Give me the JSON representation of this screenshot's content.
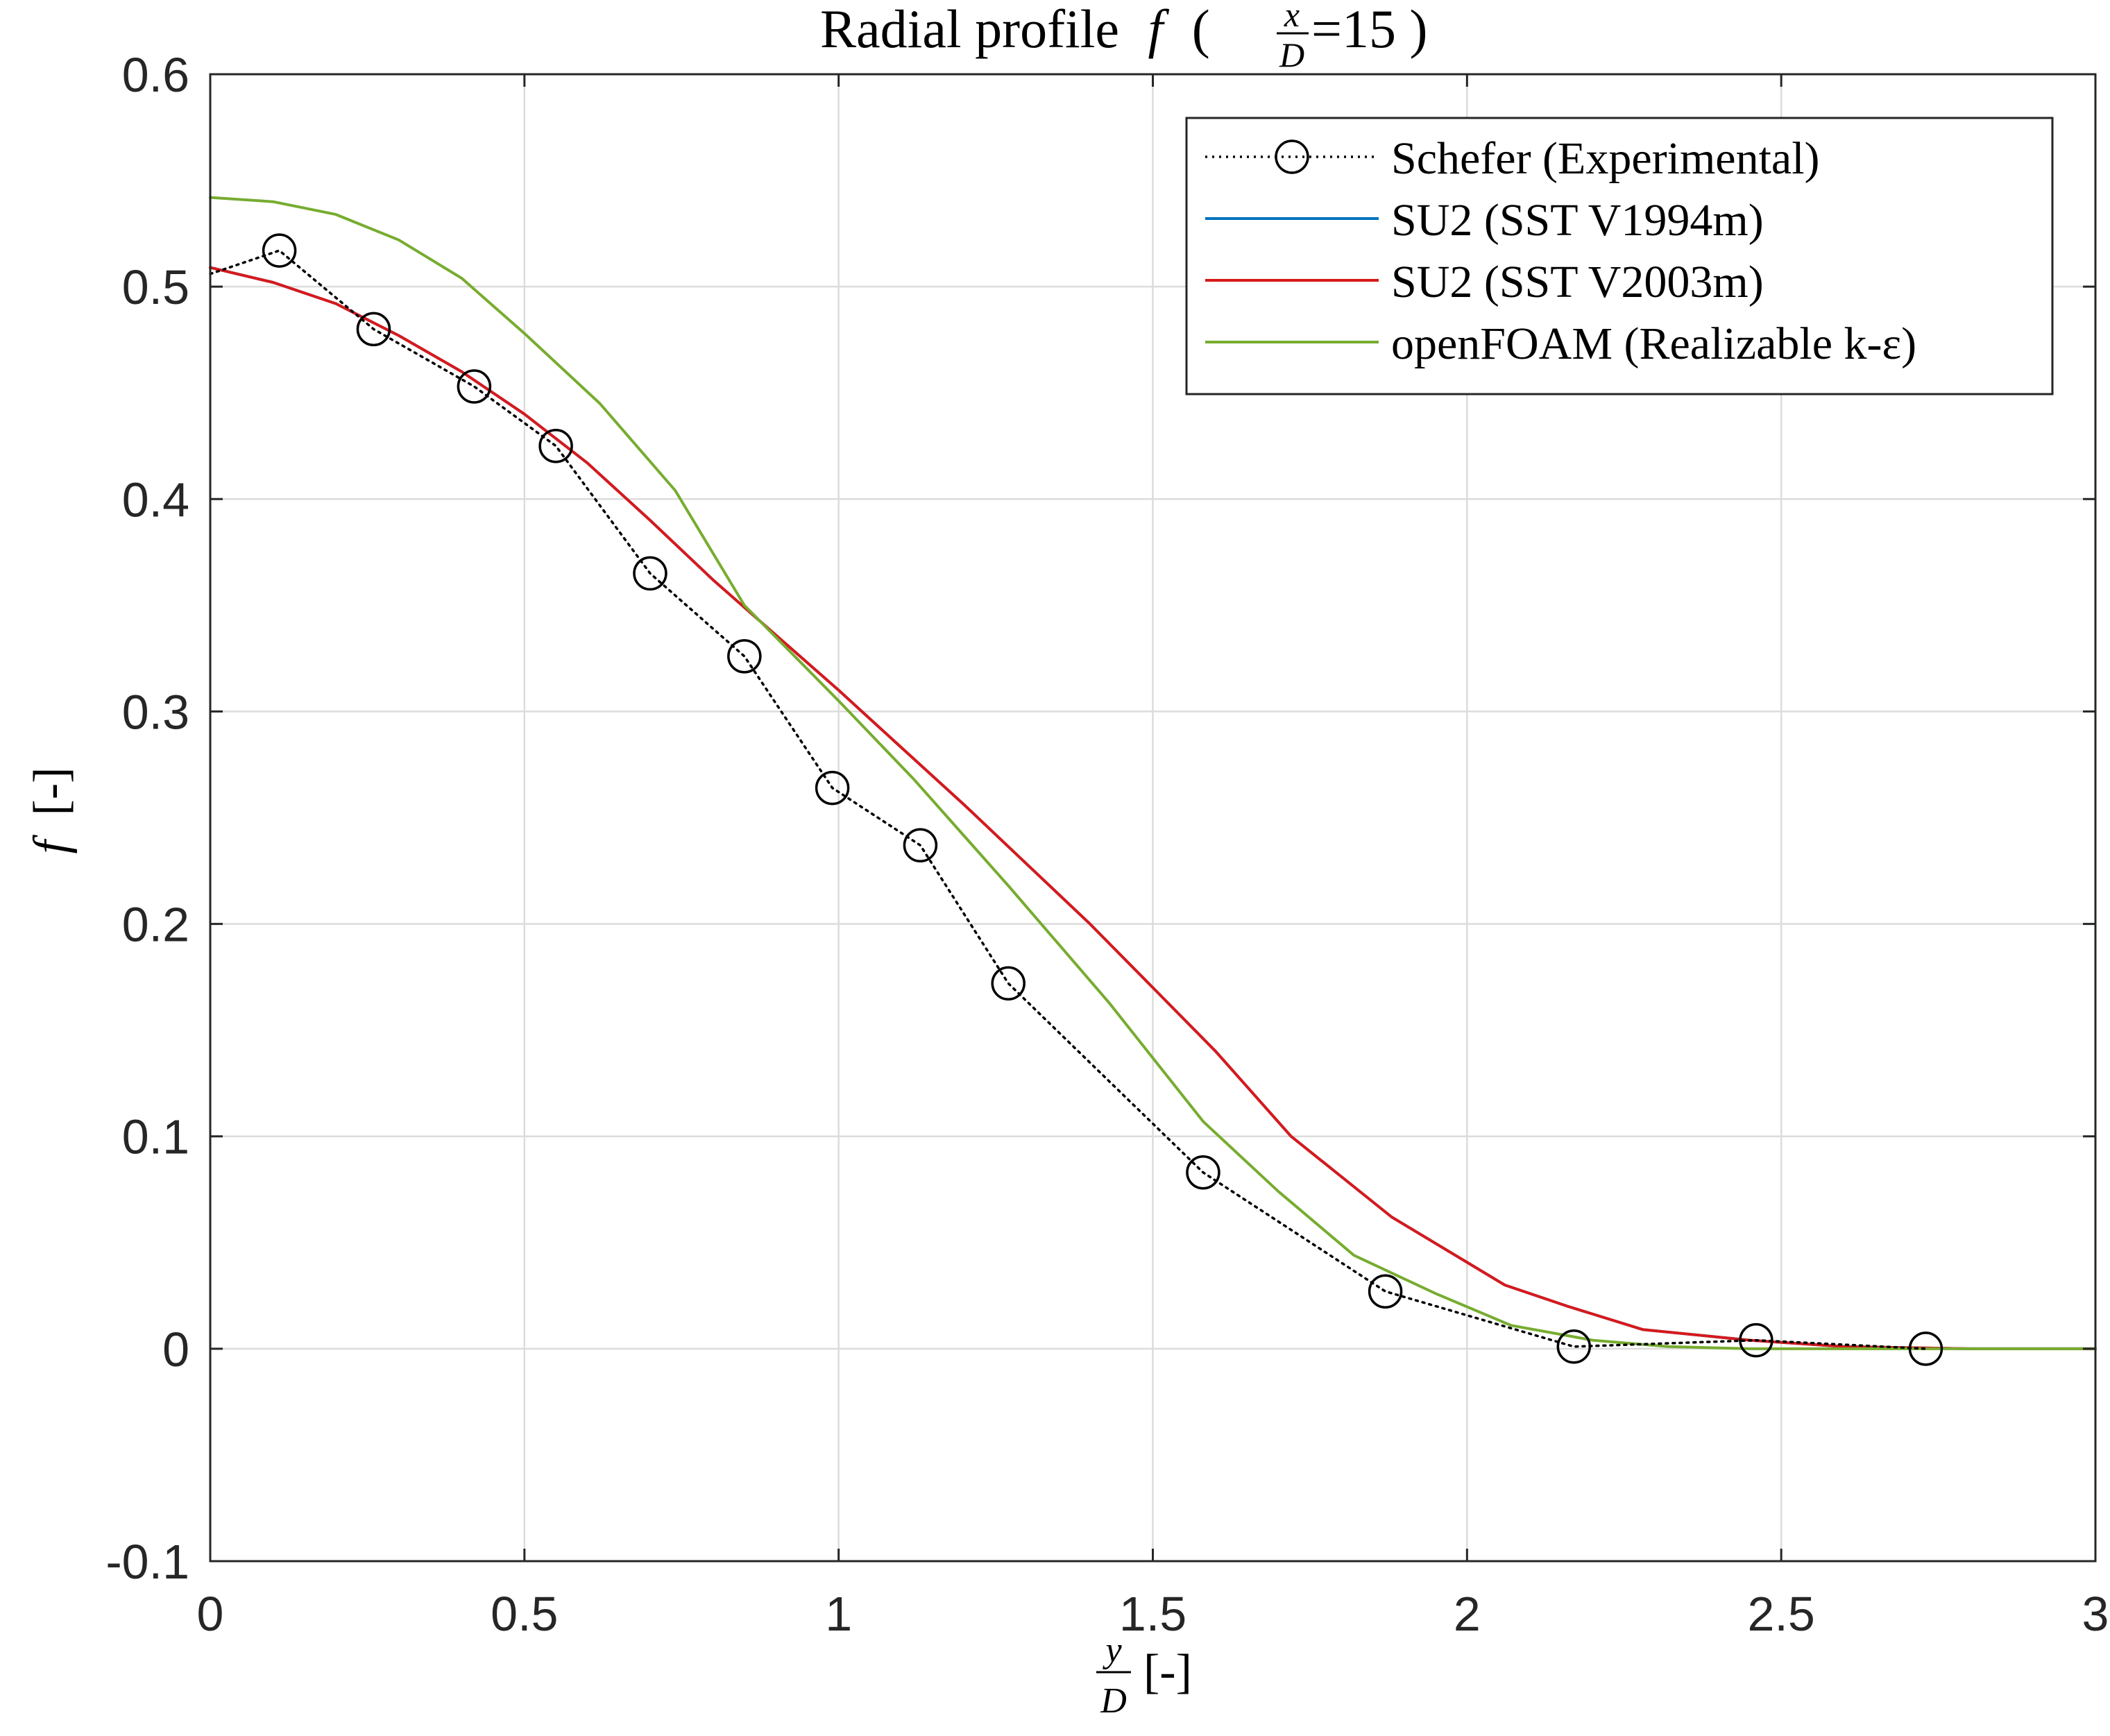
{
  "chart_data": {
    "type": "line",
    "title": {
      "text": "Radial profile",
      "symbol": "f",
      "frac_num": "x",
      "frac_den": "D",
      "value": "=15"
    },
    "xlabel": {
      "frac_num": "y",
      "frac_den": "D",
      "unit": "[-]"
    },
    "ylabel": {
      "symbol": "f",
      "unit": "[-]"
    },
    "xlim": [
      0,
      3
    ],
    "ylim": [
      -0.1,
      0.6
    ],
    "xticks": [
      0,
      0.5,
      1,
      1.5,
      2,
      2.5,
      3
    ],
    "xtick_labels": [
      "0",
      "0.5",
      "1",
      "1.5",
      "2",
      "2.5",
      "3"
    ],
    "yticks": [
      -0.1,
      0,
      0.1,
      0.2,
      0.3,
      0.4,
      0.5,
      0.6
    ],
    "ytick_labels": [
      "-0.1",
      "0",
      "0.1",
      "0.2",
      "0.3",
      "0.4",
      "0.5",
      "0.6"
    ],
    "grid": true,
    "legend_position": "top-right",
    "series": [
      {
        "name": "SU2 (SST V1994m)",
        "color": "#0072BD",
        "style": "solid",
        "marker": "none",
        "x": [
          0,
          0.1,
          0.2,
          0.3,
          0.4,
          0.5,
          0.6,
          0.7,
          0.8,
          0.9,
          1.0,
          1.1,
          1.2,
          1.3,
          1.4,
          1.5,
          1.6,
          1.72,
          1.88,
          2.06,
          2.16,
          2.28,
          2.45,
          2.6,
          2.8,
          3.0
        ],
        "y": [
          0.509,
          0.502,
          0.492,
          0.477,
          0.46,
          0.44,
          0.417,
          0.39,
          0.362,
          0.336,
          0.31,
          0.283,
          0.256,
          0.228,
          0.2,
          0.17,
          0.14,
          0.1,
          0.062,
          0.03,
          0.02,
          0.009,
          0.004,
          0.001,
          0,
          0
        ]
      },
      {
        "name": "SU2 (SST V2003m)",
        "color": "#D7191C",
        "style": "solid",
        "marker": "none",
        "x": [
          0,
          0.1,
          0.2,
          0.3,
          0.4,
          0.5,
          0.6,
          0.7,
          0.8,
          0.9,
          1.0,
          1.1,
          1.2,
          1.3,
          1.4,
          1.5,
          1.6,
          1.72,
          1.88,
          2.06,
          2.16,
          2.28,
          2.45,
          2.6,
          2.8,
          3.0
        ],
        "y": [
          0.509,
          0.502,
          0.492,
          0.477,
          0.46,
          0.44,
          0.417,
          0.39,
          0.362,
          0.336,
          0.31,
          0.283,
          0.256,
          0.228,
          0.2,
          0.17,
          0.14,
          0.1,
          0.062,
          0.03,
          0.02,
          0.009,
          0.004,
          0.001,
          0,
          0
        ]
      },
      {
        "name": "openFOAM (Realizable k-ε)",
        "color": "#77AC30",
        "style": "solid",
        "marker": "none",
        "x": [
          0,
          0.1,
          0.2,
          0.3,
          0.4,
          0.5,
          0.62,
          0.74,
          0.85,
          1.0,
          1.12,
          1.27,
          1.43,
          1.58,
          1.7,
          1.82,
          1.95,
          2.07,
          2.2,
          2.32,
          2.45,
          2.6,
          2.8,
          3.0
        ],
        "y": [
          0.542,
          0.54,
          0.534,
          0.522,
          0.504,
          0.478,
          0.445,
          0.404,
          0.35,
          0.305,
          0.268,
          0.218,
          0.163,
          0.107,
          0.074,
          0.044,
          0.026,
          0.011,
          0.004,
          0.001,
          0,
          0,
          0,
          0
        ]
      },
      {
        "name": "Schefer (Experimental)",
        "color": "#000000",
        "style": "dotted",
        "marker": "circle",
        "x": [
          0,
          0.11,
          0.26,
          0.42,
          0.55,
          0.7,
          0.85,
          0.99,
          1.13,
          1.27,
          1.58,
          1.87,
          2.17,
          2.46,
          2.73
        ],
        "y": [
          0.506,
          0.517,
          0.48,
          0.453,
          0.425,
          0.365,
          0.326,
          0.264,
          0.237,
          0.172,
          0.083,
          0.027,
          0.001,
          0.004,
          0
        ]
      }
    ],
    "legend_order": [
      "Schefer (Experimental)",
      "SU2 (SST V1994m)",
      "SU2 (SST V2003m)",
      "openFOAM (Realizable k-ε)"
    ]
  }
}
